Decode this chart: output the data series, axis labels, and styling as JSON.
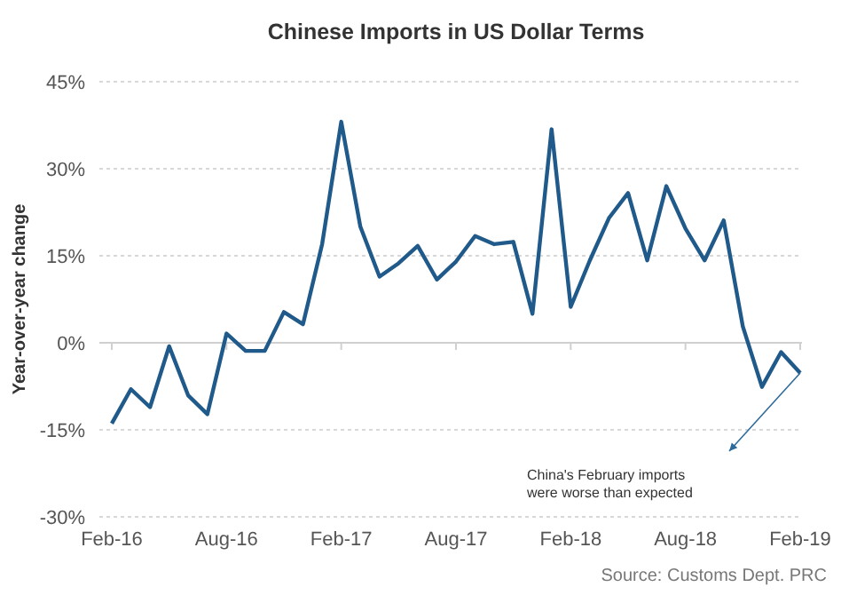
{
  "chart_data": {
    "type": "line",
    "title": "Chinese Imports in US Dollar Terms",
    "ylabel": "Year-over-year change",
    "categories": [
      "Feb-16",
      null,
      null,
      null,
      null,
      null,
      "Aug-16",
      null,
      null,
      null,
      null,
      null,
      "Feb-17",
      null,
      null,
      null,
      null,
      null,
      "Aug-17",
      null,
      null,
      null,
      null,
      null,
      "Feb-18",
      null,
      null,
      null,
      null,
      null,
      "Aug-18",
      null,
      null,
      null,
      null,
      null,
      "Feb-19"
    ],
    "series": [
      {
        "color": "#1f5a8a",
        "values": [
          -13.9,
          -8.0,
          -11.1,
          -0.6,
          -9.1,
          -12.3,
          1.6,
          -1.4,
          -1.4,
          5.3,
          3.2,
          17.0,
          38.1,
          20.0,
          11.4,
          13.7,
          16.7,
          10.9,
          14.0,
          18.4,
          17.0,
          17.4,
          5.0,
          36.8,
          6.2,
          14.2,
          21.5,
          25.8,
          14.2,
          27.0,
          19.7,
          14.2,
          21.1,
          2.8,
          -7.6,
          -1.6,
          -5.2
        ]
      }
    ],
    "ylim": [
      -30,
      45
    ],
    "yticks": [
      {
        "value": -30,
        "label": "-30%"
      },
      {
        "value": -15,
        "label": "-15%"
      },
      {
        "value": 0,
        "label": "0%"
      },
      {
        "value": 15,
        "label": "15%"
      },
      {
        "value": 30,
        "label": "30%"
      },
      {
        "value": 45,
        "label": "45%"
      }
    ],
    "grid": "y",
    "marker": "none",
    "line_style": "solid",
    "annotations": [
      "China's February imports were worse than expected",
      "Source: Customs Dept. PRC"
    ]
  }
}
